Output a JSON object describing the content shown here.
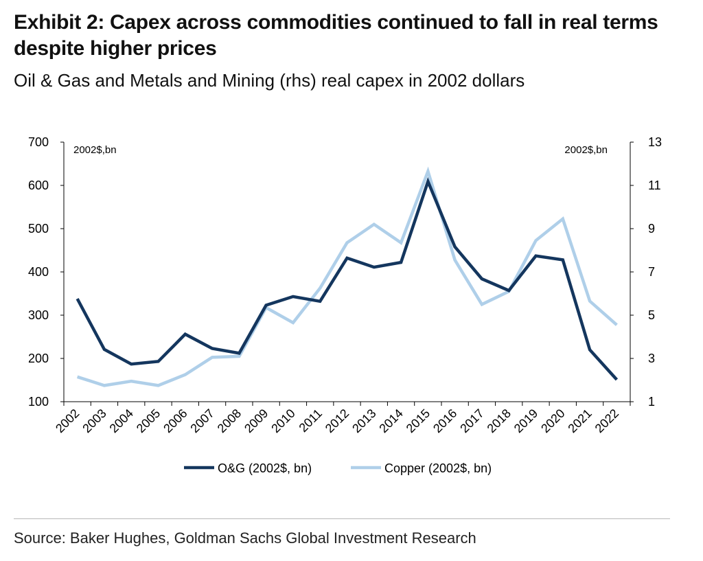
{
  "header": {
    "title": "Exhibit 2: Capex across commodities continued to fall in real terms despite higher prices",
    "subtitle": "Oil & Gas and Metals and Mining (rhs) real capex in 2002 dollars"
  },
  "footer": {
    "source": "Source: Baker Hughes, Goldman Sachs Global Investment Research"
  },
  "chart_data": {
    "type": "line",
    "categories": [
      "2002",
      "2003",
      "2004",
      "2005",
      "2006",
      "2007",
      "2008",
      "2009",
      "2010",
      "2011",
      "2012",
      "2013",
      "2014",
      "2015",
      "2016",
      "2017",
      "2018",
      "2019",
      "2020",
      "2021",
      "2022"
    ],
    "left_axis": {
      "unit_label": "2002$,bn",
      "ylim": [
        100,
        700
      ],
      "ticks": [
        100,
        200,
        300,
        400,
        500,
        600,
        700
      ]
    },
    "right_axis": {
      "unit_label": "2002$,bn",
      "ylim": [
        1,
        13
      ],
      "ticks": [
        1,
        3,
        5,
        7,
        9,
        11,
        13
      ]
    },
    "series": [
      {
        "name": "O&G (2002$, bn)",
        "axis": "left",
        "color": "#14365e",
        "values": [
          338,
          221,
          187,
          193,
          256,
          223,
          212,
          323,
          343,
          332,
          432,
          411,
          422,
          609,
          458,
          384,
          357,
          437,
          428,
          220,
          151
        ]
      },
      {
        "name": "Copper (2002$, bn)",
        "axis": "right",
        "color": "#afcfe9",
        "values": [
          2.15,
          1.75,
          1.95,
          1.75,
          2.25,
          3.05,
          3.1,
          5.35,
          4.65,
          6.25,
          8.35,
          9.2,
          8.35,
          11.65,
          7.55,
          5.5,
          6.1,
          8.45,
          9.45,
          5.65,
          4.55
        ]
      }
    ],
    "legend": "bottom-center",
    "grid": false
  }
}
